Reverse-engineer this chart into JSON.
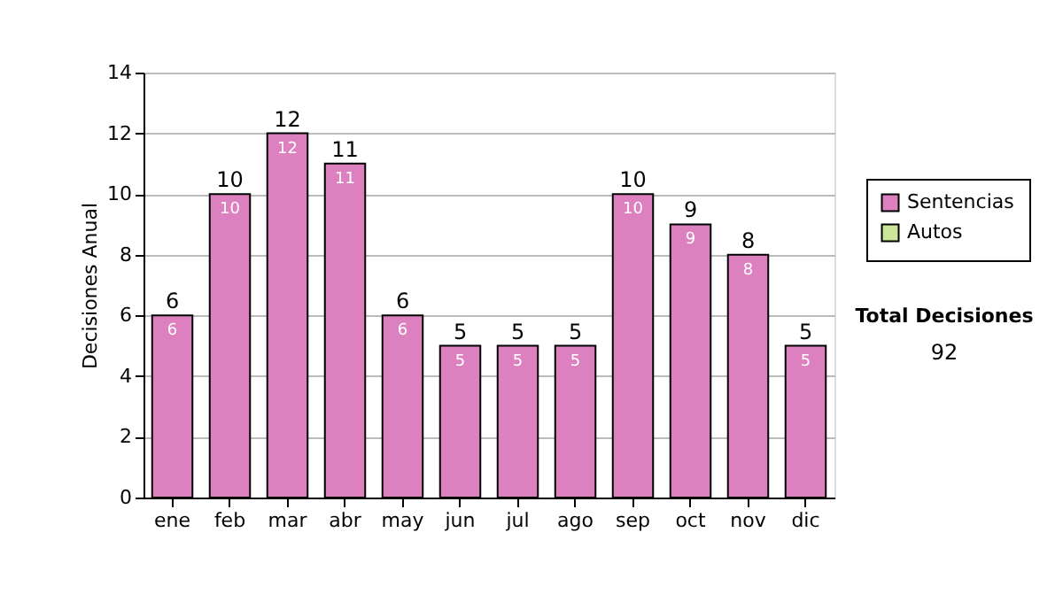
{
  "chart_data": {
    "type": "bar",
    "ylabel": "Decisiones Anual",
    "categories": [
      "ene",
      "feb",
      "mar",
      "abr",
      "may",
      "jun",
      "jul",
      "ago",
      "sep",
      "oct",
      "nov",
      "dic"
    ],
    "series": [
      {
        "name": "Sentencias",
        "color": "#dd80c0",
        "values": [
          6,
          10,
          12,
          11,
          6,
          5,
          5,
          5,
          10,
          9,
          8,
          5
        ],
        "value_labels": [
          "6",
          "10",
          "12",
          "11",
          "6",
          "5",
          "5",
          "5",
          "10",
          "9",
          "8",
          "5"
        ]
      },
      {
        "name": "Autos",
        "color": "#cce699",
        "values": [
          0,
          0,
          0,
          0,
          0,
          0,
          0,
          0,
          0,
          0,
          0,
          0
        ]
      }
    ],
    "stacked": true,
    "totals": [
      "6",
      "10",
      "12",
      "11",
      "6",
      "5",
      "5",
      "5",
      "10",
      "9",
      "8",
      "5"
    ],
    "ylim": [
      0,
      14
    ],
    "yticks": [
      0,
      2,
      4,
      6,
      8,
      10,
      12,
      14
    ],
    "grid": "y",
    "legend": "right",
    "annotations": [
      "Total Decisiones",
      "92"
    ]
  }
}
